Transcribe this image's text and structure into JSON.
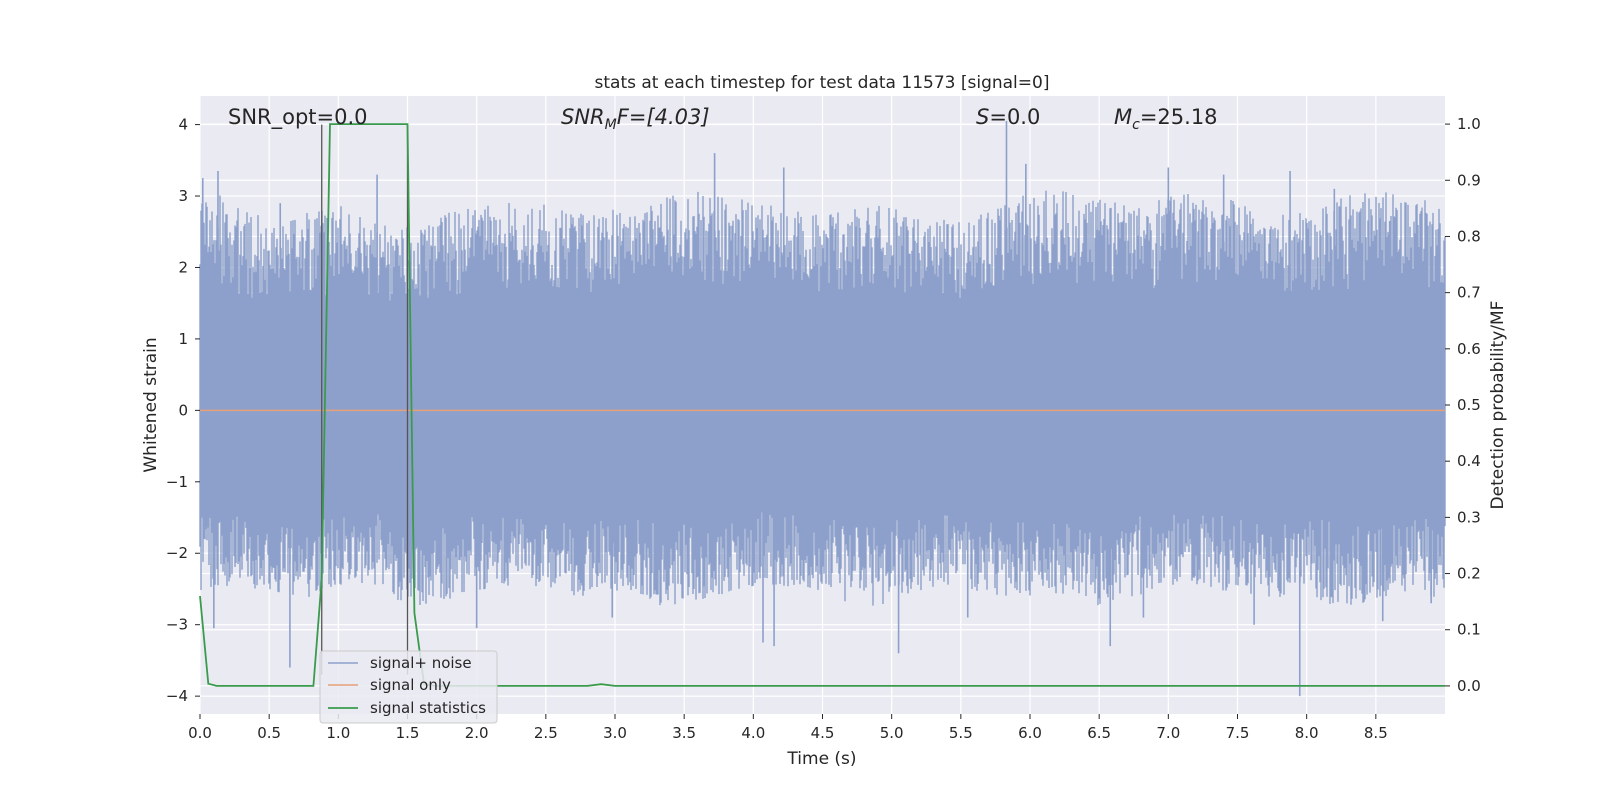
{
  "chart_data": {
    "type": "line",
    "title": "stats at each timestep for test data 11573 [signal=0]",
    "xlabel": "Time (s)",
    "ylabel": "Whitened strain",
    "ylabel_right": "Detection probability/MF",
    "xlim": [
      0.0,
      9.0
    ],
    "ylim": [
      -4.25,
      4.4
    ],
    "ylim_right": [
      -0.05,
      1.05
    ],
    "xticks": [
      0.0,
      0.5,
      1.0,
      1.5,
      2.0,
      2.5,
      3.0,
      3.5,
      4.0,
      4.5,
      5.0,
      5.5,
      6.0,
      6.5,
      7.0,
      7.5,
      8.0,
      8.5
    ],
    "xtick_labels": [
      "0.0",
      "0.5",
      "1.0",
      "1.5",
      "2.0",
      "2.5",
      "3.0",
      "3.5",
      "4.0",
      "4.5",
      "5.0",
      "5.5",
      "6.0",
      "6.5",
      "7.0",
      "7.5",
      "8.0",
      "8.5"
    ],
    "yticks": [
      -4,
      -3,
      -2,
      -1,
      0,
      1,
      2,
      3,
      4
    ],
    "ytick_labels": [
      "−4",
      "−3",
      "−2",
      "−1",
      "0",
      "1",
      "2",
      "3",
      "4"
    ],
    "yticks_right": [
      0.0,
      0.1,
      0.2,
      0.3,
      0.4,
      0.5,
      0.6,
      0.7,
      0.8,
      0.9,
      1.0
    ],
    "ytick_labels_right": [
      "0.0",
      "0.1",
      "0.2",
      "0.3",
      "0.4",
      "0.5",
      "0.6",
      "0.7",
      "0.8",
      "0.9",
      "1.0"
    ],
    "grid": true,
    "legend_position": "lower-left",
    "annotations": {
      "snr_opt": "SNR_opt=0.0",
      "snr_mf_main": "SNR",
      "snr_mf_sub": "M",
      "snr_mf_rest": "F=[4.03]",
      "s_main": "S",
      "s_rest": "=0.0",
      "mc_main": "M",
      "mc_sub": "c",
      "mc_rest": "=25.18"
    },
    "vertical_lines": [
      0.88,
      1.5
    ],
    "series": [
      {
        "name": "signal+ noise",
        "color": "#8da0cb",
        "axis": "left",
        "envelope_upper": [
          2.6,
          2.3,
          2.1,
          2.2,
          2.3,
          2.1,
          2.0,
          2.2,
          2.3,
          2.4,
          2.3,
          2.2,
          2.3,
          2.4,
          2.5,
          2.4,
          2.3,
          2.2,
          2.2,
          2.3,
          2.2,
          2.1,
          2.2,
          2.4,
          2.5,
          2.4,
          2.3,
          2.4,
          2.5,
          2.4,
          2.3,
          2.2,
          2.4,
          2.5,
          2.4,
          2.3
        ],
        "envelope_lower": [
          -2.0,
          -1.9,
          -2.0,
          -2.1,
          -1.9,
          -2.0,
          -2.2,
          -2.1,
          -2.0,
          -1.9,
          -2.0,
          -2.1,
          -2.0,
          -2.2,
          -2.1,
          -2.0,
          -1.9,
          -2.0,
          -2.1,
          -2.2,
          -2.0,
          -1.9,
          -2.0,
          -2.1,
          -2.0,
          -2.2,
          -2.1,
          -2.0,
          -1.9,
          -2.0,
          -2.1,
          -2.0,
          -2.2,
          -2.1,
          -2.0,
          -2.1
        ],
        "peaks": [
          [
            0.02,
            3.25
          ],
          [
            0.13,
            3.35
          ],
          [
            0.58,
            2.9
          ],
          [
            1.28,
            3.3
          ],
          [
            3.72,
            3.6
          ],
          [
            4.22,
            3.4
          ],
          [
            5.83,
            4.05
          ],
          [
            5.97,
            3.45
          ],
          [
            7.0,
            3.4
          ],
          [
            7.4,
            3.3
          ],
          [
            7.88,
            3.35
          ],
          [
            8.2,
            3.1
          ],
          [
            8.6,
            2.65
          ],
          [
            2.0,
            -3.05
          ],
          [
            2.98,
            -2.9
          ],
          [
            4.07,
            -3.25
          ],
          [
            4.15,
            -3.3
          ],
          [
            5.05,
            -3.4
          ],
          [
            5.55,
            -2.9
          ],
          [
            6.58,
            -3.3
          ],
          [
            6.82,
            -2.9
          ],
          [
            7.95,
            -4.0
          ],
          [
            0.1,
            -3.05
          ],
          [
            0.65,
            -3.6
          ],
          [
            8.55,
            -2.95
          ],
          [
            7.62,
            -3.0
          ],
          [
            8.9,
            -2.7
          ]
        ]
      },
      {
        "name": "signal only",
        "color": "#e5a07a",
        "axis": "left",
        "x": [
          0.0,
          9.0
        ],
        "y": [
          0.0,
          0.0
        ]
      },
      {
        "name": "signal statistics",
        "color": "#3a9b4c",
        "axis": "right",
        "x": [
          0.0,
          0.06,
          0.12,
          0.82,
          0.88,
          0.94,
          1.5,
          1.55,
          1.62,
          1.7,
          2.8,
          2.9,
          3.0,
          9.0
        ],
        "y": [
          0.16,
          0.004,
          0.0,
          0.0,
          0.19,
          1.0,
          1.0,
          0.13,
          0.003,
          0.0,
          0.0,
          0.003,
          0.0,
          0.0
        ]
      }
    ]
  }
}
